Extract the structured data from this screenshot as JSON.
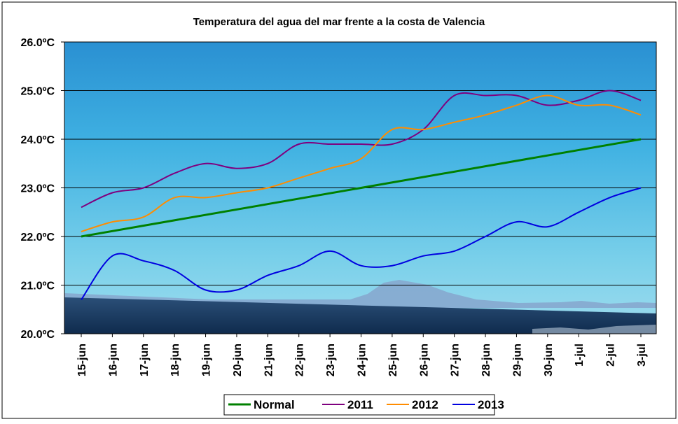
{
  "chart_data": {
    "type": "line",
    "title": "Temperatura del agua del mar frente a la costa de Valencia",
    "xlabel": "",
    "ylabel": "",
    "ylim": [
      20.0,
      26.0
    ],
    "y_ticks": [
      "20.0ºC",
      "21.0ºC",
      "22.0ºC",
      "23.0ºC",
      "24.0ºC",
      "25.0ºC",
      "26.0ºC"
    ],
    "categories": [
      "15-jun",
      "16-jun",
      "17-jun",
      "18-jun",
      "19-jun",
      "20-jun",
      "21-jun",
      "22-jun",
      "23-jun",
      "24-jun",
      "25-jun",
      "26-jun",
      "27-jun",
      "28-jun",
      "29-jun",
      "30-jun",
      "1-jul",
      "2-jul",
      "3-jul"
    ],
    "grid": true,
    "legend_position": "bottom",
    "series": [
      {
        "name": "Normal",
        "color": "#008000",
        "values": [
          22.0,
          22.11,
          22.22,
          22.33,
          22.44,
          22.56,
          22.67,
          22.78,
          22.89,
          23.0,
          23.11,
          23.22,
          23.33,
          23.44,
          23.56,
          23.67,
          23.78,
          23.89,
          24.0
        ]
      },
      {
        "name": "2011",
        "color": "#7f007f",
        "values": [
          22.6,
          22.9,
          23.0,
          23.3,
          23.5,
          23.4,
          23.5,
          23.9,
          23.9,
          23.9,
          23.9,
          24.2,
          24.9,
          24.9,
          24.9,
          24.7,
          24.8,
          25.0,
          24.8
        ]
      },
      {
        "name": "2012",
        "color": "#ff8c00",
        "values": [
          22.1,
          22.3,
          22.4,
          22.8,
          22.8,
          22.9,
          23.0,
          23.2,
          23.4,
          23.6,
          24.2,
          24.2,
          24.35,
          24.5,
          24.7,
          24.9,
          24.7,
          24.7,
          24.5
        ]
      },
      {
        "name": "2013",
        "color": "#0000e0",
        "values": [
          20.7,
          21.6,
          21.5,
          21.3,
          20.9,
          20.9,
          21.2,
          21.4,
          21.7,
          21.4,
          21.4,
          21.6,
          21.7,
          22.0,
          22.3,
          22.2,
          22.5,
          22.8,
          23.0
        ]
      }
    ]
  }
}
